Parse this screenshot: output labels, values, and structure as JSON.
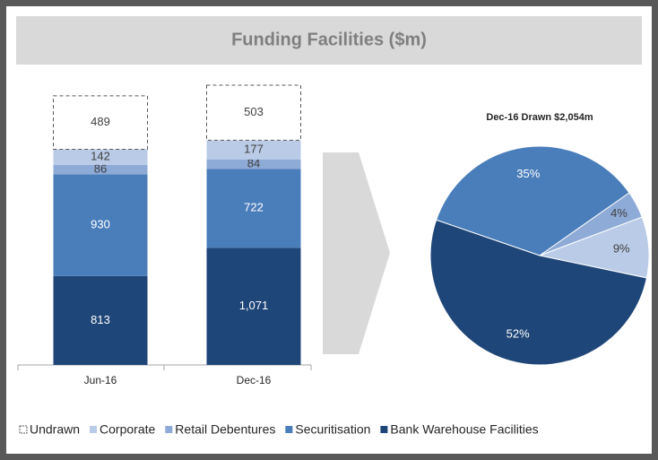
{
  "title": "Funding Facilities ($m)",
  "chart_data": [
    {
      "type": "stacked_bar",
      "categories": [
        "Jun-16",
        "Dec-16"
      ],
      "series": [
        {
          "name": "Undrawn",
          "color": "#ffffff",
          "line_style": "dashed",
          "values": [
            489,
            503
          ]
        },
        {
          "name": "Corporate",
          "color": "#b9cbe6",
          "values": [
            142,
            177
          ]
        },
        {
          "name": "Retail Debentures",
          "color": "#8eaad6",
          "values": [
            86,
            84
          ]
        },
        {
          "name": "Securitisation",
          "color": "#4a7ebb",
          "values": [
            930,
            722
          ]
        },
        {
          "name": "Bank Warehouse Facilities",
          "color": "#1f4678",
          "values": [
            813,
            1071
          ],
          "value_labels": [
            "813",
            "1,071"
          ]
        }
      ]
    },
    {
      "type": "pie",
      "title": "Dec-16 Drawn $2,054m",
      "values": [
        35,
        4,
        9,
        52
      ],
      "value_labels": [
        "35%",
        "4%",
        "9%",
        "52%"
      ],
      "colors": [
        "#4a7ebb",
        "#8eaad6",
        "#b9cbe6",
        "#1f4678"
      ]
    }
  ]
}
